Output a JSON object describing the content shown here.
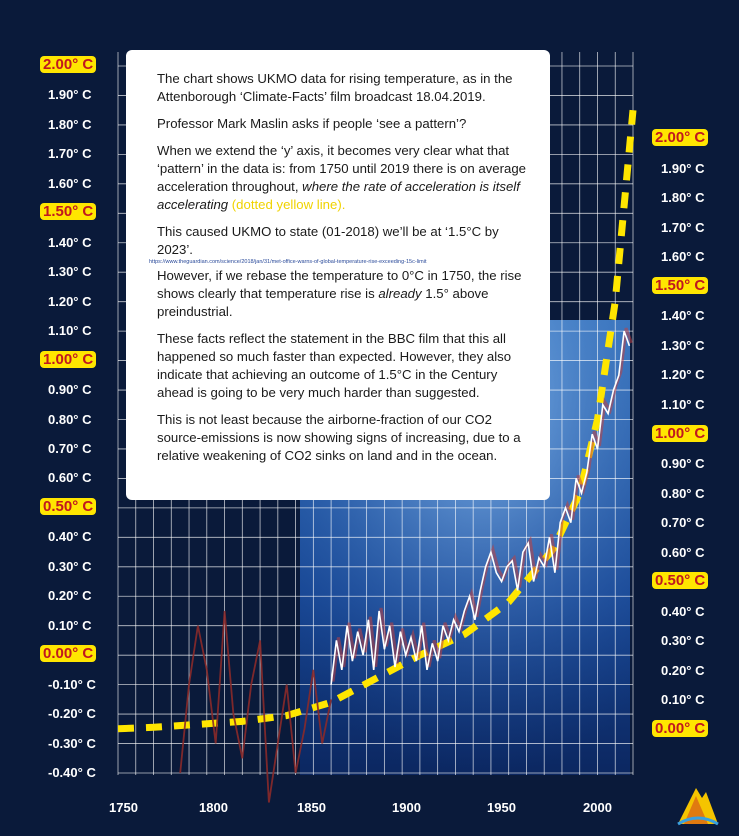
{
  "chart_data": {
    "type": "line",
    "title": "",
    "xlabel": "",
    "ylabel": "",
    "xlim": [
      1730,
      2020
    ],
    "ylim_left": [
      -0.45,
      2.05
    ],
    "ylim_right": [
      -0.05,
      2.05
    ],
    "grid": true,
    "x_ticks": [
      "1750",
      "1800",
      "1850",
      "1900",
      "1950",
      "2000"
    ],
    "y_ticks_left": [
      {
        "label": "2.00° C",
        "highlight": true
      },
      {
        "label": "1.90° C"
      },
      {
        "label": "1.80° C"
      },
      {
        "label": "1.70° C"
      },
      {
        "label": "1.60° C"
      },
      {
        "label": "1.50° C",
        "highlight": true
      },
      {
        "label": "1.40° C"
      },
      {
        "label": "1.30° C"
      },
      {
        "label": "1.20° C"
      },
      {
        "label": "1.10° C"
      },
      {
        "label": "1.00° C",
        "highlight": true
      },
      {
        "label": "0.90° C"
      },
      {
        "label": "0.80° C"
      },
      {
        "label": "0.70° C"
      },
      {
        "label": "0.60° C"
      },
      {
        "label": "0.50° C",
        "highlight": true
      },
      {
        "label": "0.40° C"
      },
      {
        "label": "0.30° C"
      },
      {
        "label": "0.20° C"
      },
      {
        "label": "0.10° C"
      },
      {
        "label": "0.00° C",
        "highlight": true
      },
      {
        "label": "-0.10° C"
      },
      {
        "label": "-0.20° C"
      },
      {
        "label": "-0.30° C"
      },
      {
        "label": "-0.40° C"
      }
    ],
    "y_ticks_right": [
      {
        "label": "2.00° C",
        "highlight": true
      },
      {
        "label": "1.90° C"
      },
      {
        "label": "1.80° C"
      },
      {
        "label": "1.70° C"
      },
      {
        "label": "1.60° C"
      },
      {
        "label": "1.50° C",
        "highlight": true
      },
      {
        "label": "1.40° C"
      },
      {
        "label": "1.30° C"
      },
      {
        "label": "1.20° C"
      },
      {
        "label": "1.10° C"
      },
      {
        "label": "1.00° C",
        "highlight": true
      },
      {
        "label": "0.90° C"
      },
      {
        "label": "0.80° C"
      },
      {
        "label": "0.70° C"
      },
      {
        "label": "0.60° C"
      },
      {
        "label": "0.50° C",
        "highlight": true
      },
      {
        "label": "0.40° C"
      },
      {
        "label": "0.30° C"
      },
      {
        "label": "0.20° C"
      },
      {
        "label": "0.10° C"
      },
      {
        "label": "0.00° C",
        "highlight": true
      }
    ],
    "series": [
      {
        "style": "dotted-yellow",
        "x": [
          1730,
          1750,
          1775,
          1800,
          1825,
          1850,
          1875,
          1900,
          1925,
          1950,
          1975,
          1990,
          2000,
          2010,
          2020
        ],
        "y": [
          -0.25,
          -0.245,
          -0.235,
          -0.225,
          -0.205,
          -0.16,
          -0.08,
          0.0,
          0.07,
          0.18,
          0.36,
          0.55,
          0.8,
          1.2,
          1.85
        ]
      },
      {
        "style": "temperature-white",
        "x": [
          1850,
          1853,
          1856,
          1859,
          1862,
          1865,
          1868,
          1871,
          1874,
          1877,
          1880,
          1883,
          1886,
          1889,
          1892,
          1895,
          1898,
          1901,
          1904,
          1907,
          1910,
          1913,
          1916,
          1919,
          1922,
          1925,
          1928,
          1931,
          1934,
          1937,
          1940,
          1943,
          1946,
          1949,
          1952,
          1955,
          1958,
          1961,
          1964,
          1967,
          1970,
          1973,
          1976,
          1979,
          1982,
          1985,
          1988,
          1991,
          1994,
          1997,
          2000,
          2003,
          2006,
          2009,
          2012,
          2015,
          2018
        ],
        "y": [
          -0.1,
          0.05,
          -0.05,
          0.1,
          -0.02,
          0.08,
          0.0,
          0.12,
          -0.05,
          0.15,
          0.02,
          0.1,
          -0.04,
          0.08,
          0.0,
          0.06,
          -0.02,
          0.1,
          -0.05,
          0.04,
          -0.02,
          0.1,
          0.05,
          0.12,
          0.08,
          0.15,
          0.2,
          0.12,
          0.22,
          0.3,
          0.35,
          0.28,
          0.25,
          0.3,
          0.32,
          0.22,
          0.35,
          0.38,
          0.25,
          0.33,
          0.3,
          0.4,
          0.28,
          0.45,
          0.5,
          0.45,
          0.6,
          0.55,
          0.62,
          0.75,
          0.7,
          0.85,
          0.82,
          0.9,
          0.95,
          1.1,
          1.05
        ]
      },
      {
        "style": "proxy-red",
        "x": [
          1765,
          1770,
          1775,
          1780,
          1785,
          1790,
          1795,
          1800,
          1805,
          1810,
          1815,
          1820,
          1825,
          1830,
          1835,
          1840,
          1845,
          1850
        ],
        "y": [
          -0.4,
          -0.1,
          0.1,
          -0.05,
          -0.3,
          0.15,
          -0.2,
          -0.35,
          -0.1,
          0.05,
          -0.5,
          -0.3,
          -0.1,
          -0.4,
          -0.25,
          -0.05,
          -0.3,
          -0.15
        ]
      }
    ]
  },
  "textbox": {
    "p1": "The chart shows UKMO data for rising temperature, as in the Attenborough ‘Climate-Facts’ film broadcast 18.04.2019.",
    "p2": "Professor Mark Maslin asks if people ‘see a pattern’?",
    "p3_a": "When we extend the ‘y’ axis, it becomes very clear what that ‘pattern’ in the data is: from 1750 until 2019 there is on average acceleration throughout, ",
    "p3_b": "where the rate of acceleration is itself accelerating",
    "p3_c": " (dotted yellow line).",
    "p4": "This caused UKMO to state (01-2018) we’ll be at ‘1.5°C by 2023’.",
    "url": "https://www.theguardian.com/science/2018/jan/31/met-office-warns-of-global-temperature-rise-exceeding-15c-limit",
    "p5_a": "However, if we rebase the temperature to 0°C in 1750, the rise shows clearly that temperature rise is ",
    "p5_b": "already",
    "p5_c": " 1.5° above preindustrial.",
    "p6": "These facts reflect the statement in the BBC film that this all happened so much faster than expected. However, they also indicate that achieving an outcome of 1.5°C in the Century ahead is going to be very much harder than suggested.",
    "p7": "This is not least because the airborne-fraction of our CO2 source-emissions is now showing signs of increasing, due to a relative weakening of CO2 sinks on land and in the ocean."
  },
  "colors": {
    "background": "#0a1a3a",
    "highlight": "#ffe600",
    "highlight_text": "#c0171f",
    "trend": "#ffe600",
    "grid": "#ffffff"
  },
  "icons": {
    "logo": "mountain-logo-icon"
  }
}
